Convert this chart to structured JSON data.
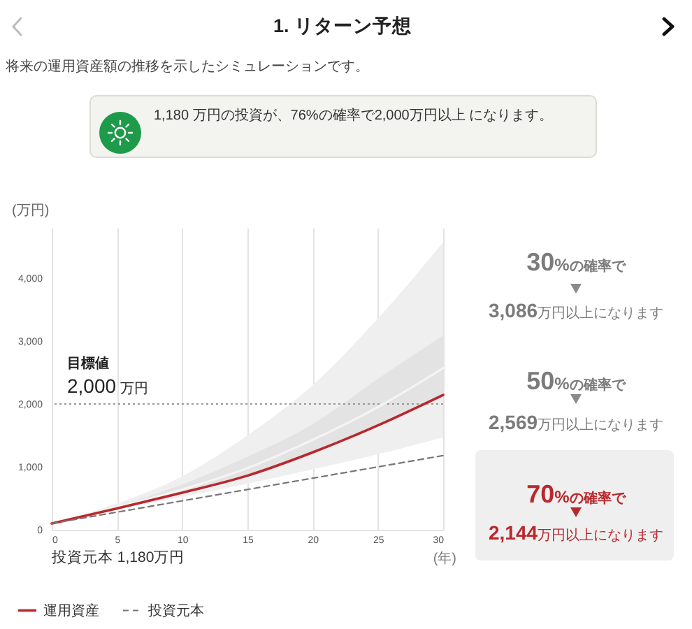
{
  "chart_data": {
    "type": "line",
    "title": "1. リターン予想",
    "subtitle": "将来の運用資産額の推移を示したシミュレーションです。",
    "xlabel": "(年)",
    "ylabel": "(万円)",
    "x": [
      0,
      5,
      10,
      15,
      20,
      25,
      30
    ],
    "series": [
      {
        "name": "運用資産",
        "color": "#b8282d",
        "values": [
          100,
          340,
          590,
          860,
          1230,
          1660,
          2144
        ],
        "lower": [
          100,
          320,
          520,
          730,
          960,
          1200,
          1470
        ],
        "upper": [
          100,
          420,
          850,
          1500,
          2300,
          3360,
          4570
        ],
        "line_style": "solid"
      },
      {
        "color": "#f4f4f4",
        "values": [
          100,
          360,
          640,
          980,
          1430,
          1950,
          2569
        ],
        "lower": [
          100,
          340,
          590,
          860,
          1230,
          1660,
          2144
        ],
        "upper": [
          100,
          380,
          720,
          1160,
          1680,
          2400,
          3086
        ]
      },
      {
        "name": "投資元本",
        "color": "#777777",
        "x": [
          0,
          30
        ],
        "values": [
          100,
          1180
        ],
        "line_style": "dashed"
      }
    ],
    "xlim": [
      0,
      30
    ],
    "xticks": [
      0,
      5,
      10,
      15,
      20,
      25,
      30
    ],
    "ylim": [
      0,
      4800
    ],
    "yticks": [
      0,
      {
        "value": 1000,
        "label": "1,000"
      },
      {
        "value": 2000,
        "label": "2,000"
      },
      {
        "value": 3000,
        "label": "3,000"
      },
      {
        "value": 4000,
        "label": "4,000"
      }
    ],
    "grid": "x",
    "legend": "bottom left",
    "ref_lines": [
      {
        "axis": "y",
        "value": 2000,
        "label": "目標値\n2,000 万円",
        "color": "#999999",
        "line_style": "dotted"
      }
    ],
    "annotations": [
      "1,180 万円の投資が、76%の確率で2,000万円以上 になります。",
      "30%の確率で\n3,086万円以上になります",
      "50%の確率で\n2,569万円以上になります",
      "70%の確率で\n2,144万円以上になります",
      "投資元本 1,180万円"
    ]
  }
}
